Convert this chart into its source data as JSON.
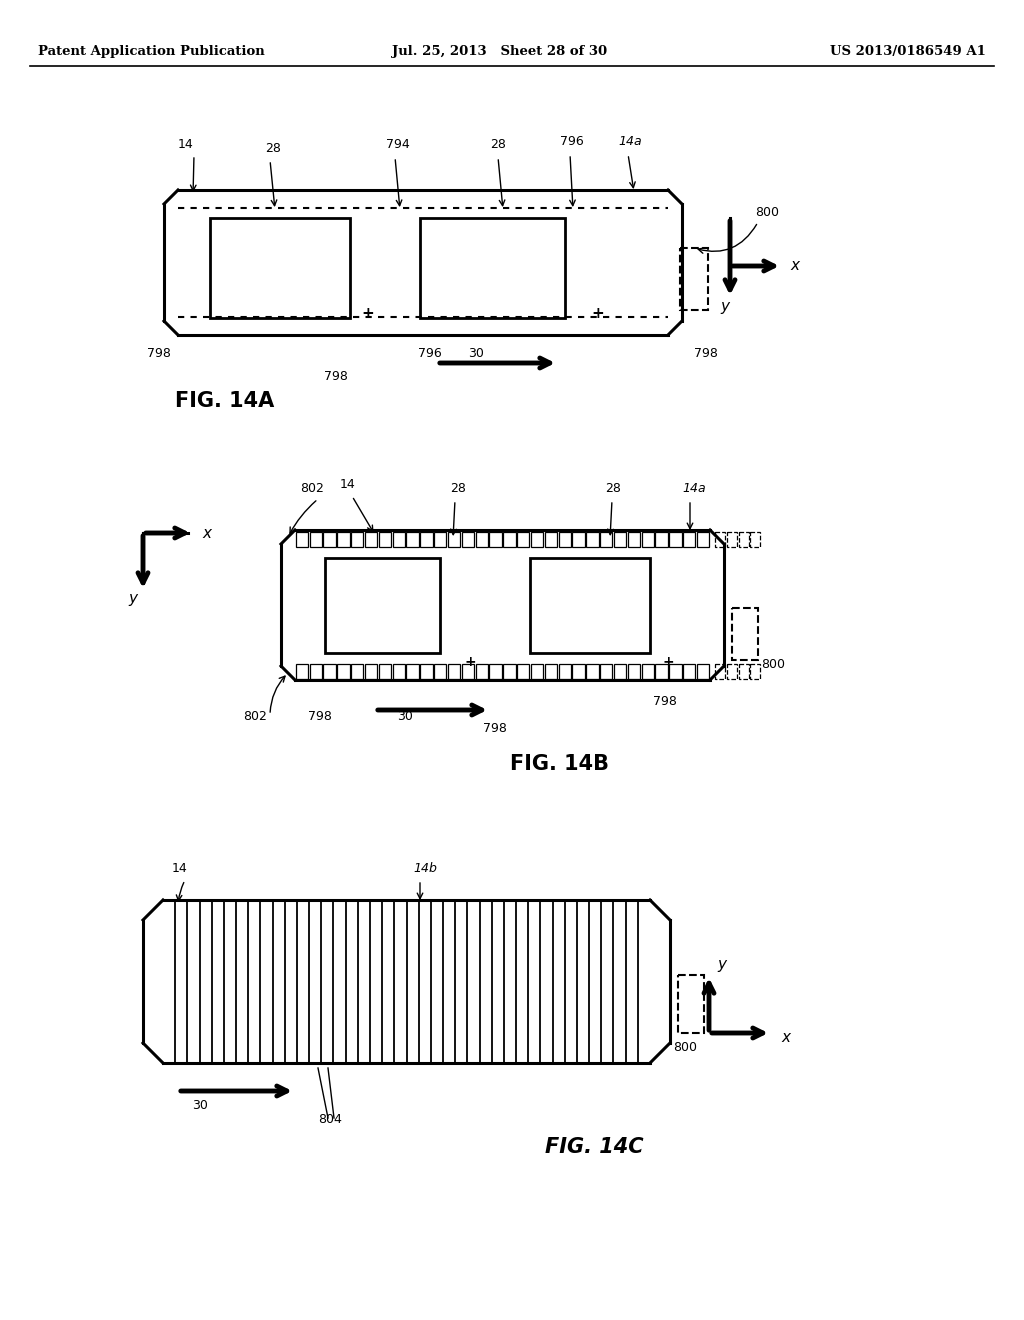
{
  "header_left": "Patent Application Publication",
  "header_mid": "Jul. 25, 2013   Sheet 28 of 30",
  "header_right": "US 2013/0186549 A1",
  "fig_label_A": "FIG. 14A",
  "fig_label_B": "FIG. 14B",
  "fig_label_C": "FIG. 14C",
  "bg_color": "#ffffff",
  "line_color": "#000000"
}
